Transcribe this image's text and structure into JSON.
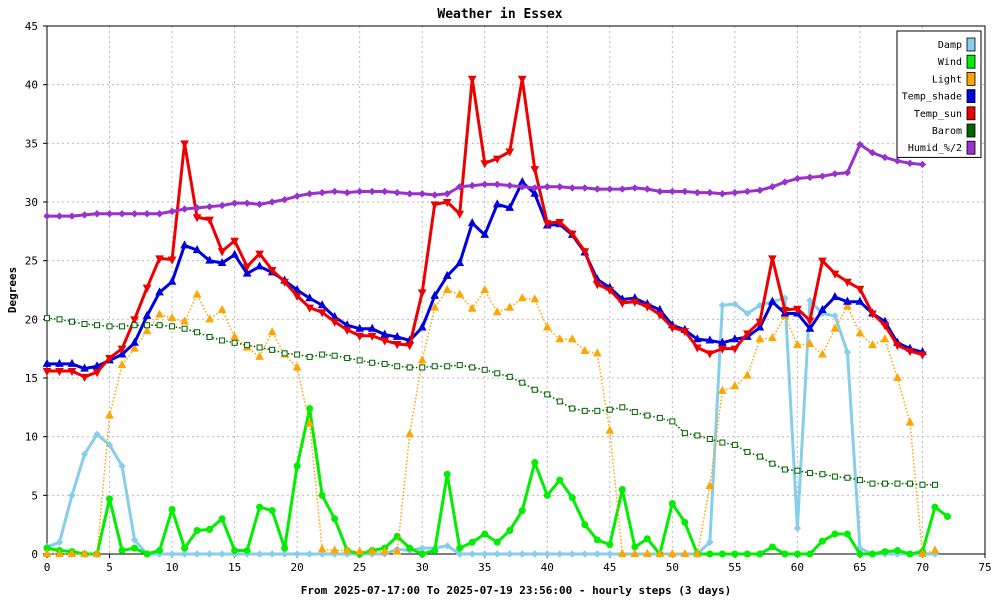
{
  "chart_data": {
    "type": "line",
    "title": "Weather in Essex",
    "xlabel": "From 2025-07-17:00 To 2025-07-19 23:56:00 - hourly steps (3 days)",
    "ylabel": "Degrees",
    "xlim": [
      0,
      75
    ],
    "ylim": [
      0,
      45
    ],
    "xticks": [
      0,
      5,
      10,
      15,
      20,
      25,
      30,
      35,
      40,
      45,
      50,
      55,
      60,
      65,
      70,
      75
    ],
    "yticks": [
      0,
      5,
      10,
      15,
      20,
      25,
      30,
      35,
      40,
      45
    ],
    "grid": true,
    "legend_position": "top-right",
    "series": [
      {
        "name": "Damp",
        "color": "#87ceeb",
        "style": "thick",
        "marker": "diamond",
        "values": [
          0.6,
          1,
          5,
          8.5,
          10.2,
          9.3,
          7.5,
          1.2,
          0,
          0,
          0,
          0,
          0,
          0,
          0,
          0,
          0,
          0,
          0,
          0,
          0,
          0,
          0,
          0,
          0,
          0,
          0,
          0,
          0.4,
          0.3,
          0.5,
          0.5,
          0.7,
          0,
          0,
          0,
          0,
          0,
          0,
          0,
          0,
          0,
          0,
          0,
          0,
          0,
          0,
          0,
          0,
          0,
          0,
          0,
          0,
          1,
          21.2,
          21.3,
          20.5,
          21.2,
          21.5,
          21.8,
          2.2,
          21.6,
          20.5,
          20.3,
          17.2,
          0.5,
          0,
          0,
          0,
          0,
          0,
          0
        ]
      },
      {
        "name": "Wind",
        "color": "#00ee00",
        "style": "thick",
        "marker": "circle",
        "values": [
          0.5,
          0.3,
          0.2,
          0,
          0,
          4.7,
          0.3,
          0.5,
          0,
          0.3,
          3.8,
          0.5,
          2,
          2.1,
          3,
          0.3,
          0.3,
          4,
          3.7,
          0.5,
          7.5,
          12.4,
          5,
          3,
          0.3,
          0,
          0.3,
          0.5,
          1.5,
          0.5,
          0,
          0.3,
          6.8,
          0.5,
          1,
          1.7,
          1,
          2,
          3.7,
          7.8,
          5,
          6.3,
          4.8,
          2.5,
          1.2,
          0.8,
          5.5,
          0.6,
          1.3,
          0,
          4.3,
          2.7,
          0,
          0,
          0,
          0,
          0,
          0,
          0.6,
          0,
          0,
          0,
          1.1,
          1.7,
          1.7,
          0,
          0,
          0.2,
          0.3,
          0,
          0.2,
          4,
          3.2
        ]
      },
      {
        "name": "Light",
        "color": "#ffa500",
        "style": "dotted",
        "marker": "triangle-up",
        "values": [
          0,
          0,
          0,
          0,
          0,
          11.8,
          16.1,
          17.5,
          19,
          20.4,
          20.1,
          19.8,
          22.1,
          20,
          20.8,
          18.5,
          17.6,
          16.8,
          18.9,
          17,
          15.9,
          11.1,
          0.4,
          0.3,
          0.3,
          0.2,
          0.2,
          0.2,
          0.2,
          10.2,
          16.5,
          21,
          22.5,
          22.1,
          20.9,
          22.5,
          20.6,
          21,
          21.8,
          21.7,
          19.3,
          18.3,
          18.3,
          17.3,
          17.1,
          10.5,
          0,
          0,
          0,
          0,
          0,
          0,
          0,
          5.8,
          13.9,
          14.3,
          15.2,
          18.3,
          18.4,
          20.3,
          17.8,
          17.9,
          17,
          19.2,
          21.1,
          18.8,
          17.8,
          18.3,
          15,
          11.2,
          0,
          0.3
        ]
      },
      {
        "name": "Temp_shade",
        "color": "#0000dd",
        "style": "thick",
        "marker": "triangle-up",
        "values": [
          16.2,
          16.2,
          16.2,
          15.8,
          16,
          16.5,
          17,
          18,
          20.3,
          22.3,
          23.2,
          26.3,
          25.9,
          25,
          24.8,
          25.5,
          23.9,
          24.5,
          24,
          23.3,
          22.5,
          21.8,
          21.2,
          20.2,
          19.5,
          19.2,
          19.2,
          18.7,
          18.5,
          18.2,
          19.3,
          22,
          23.7,
          24.8,
          28.2,
          27.2,
          29.8,
          29.5,
          31.7,
          30.7,
          28,
          28.1,
          27.2,
          25.7,
          23.4,
          22.7,
          21.7,
          21.8,
          21.3,
          20.8,
          19.5,
          19.1,
          18.3,
          18.2,
          18,
          18.3,
          18.5,
          19.3,
          21.5,
          20.5,
          20.5,
          19.2,
          20.8,
          21.9,
          21.5,
          21.5,
          20.5,
          19.8,
          18,
          17.5,
          17.2
        ]
      },
      {
        "name": "Temp_sun",
        "color": "#ee0000",
        "style": "thick",
        "marker": "triangle-down",
        "values": [
          15.6,
          15.6,
          15.6,
          15.1,
          15.5,
          16.7,
          17.5,
          20,
          22.7,
          25.2,
          25.1,
          35,
          28.7,
          28.5,
          25.8,
          26.7,
          24.5,
          25.6,
          24.2,
          23.2,
          22,
          21,
          20.6,
          19.8,
          19.1,
          18.6,
          18.6,
          18.2,
          17.9,
          17.8,
          22.3,
          29.8,
          30,
          29,
          40.5,
          33.3,
          33.7,
          34.3,
          40.5,
          32.8,
          28.2,
          28.3,
          27.3,
          25.8,
          23,
          22.5,
          21.4,
          21.5,
          21.1,
          20.4,
          19.3,
          19,
          17.6,
          17.1,
          17.5,
          17.5,
          18.8,
          19.8,
          25.2,
          20.8,
          20.9,
          19.9,
          25,
          23.9,
          23.2,
          22.6,
          20.5,
          19.5,
          17.8,
          17.3,
          17
        ]
      },
      {
        "name": "Barom",
        "color": "#006400",
        "style": "dotted",
        "marker": "square",
        "values": [
          20.1,
          20,
          19.8,
          19.6,
          19.5,
          19.4,
          19.4,
          19.5,
          19.5,
          19.5,
          19.4,
          19.2,
          18.9,
          18.5,
          18.2,
          18,
          17.8,
          17.6,
          17.4,
          17.1,
          17,
          16.8,
          17,
          16.9,
          16.7,
          16.5,
          16.3,
          16.2,
          16,
          15.9,
          15.9,
          16,
          16,
          16.1,
          15.9,
          15.7,
          15.4,
          15.1,
          14.6,
          14,
          13.6,
          13,
          12.4,
          12.2,
          12.2,
          12.3,
          12.5,
          12.1,
          11.8,
          11.6,
          11.3,
          10.3,
          10.1,
          9.8,
          9.5,
          9.3,
          8.7,
          8.3,
          7.7,
          7.2,
          7.1,
          6.9,
          6.8,
          6.6,
          6.5,
          6.3,
          6,
          6,
          6,
          6,
          5.9,
          5.9
        ]
      },
      {
        "name": "Humid_%/2",
        "color": "#9932cc",
        "style": "thick",
        "marker": "diamond",
        "values": [
          28.8,
          28.8,
          28.8,
          28.9,
          29,
          29,
          29,
          29,
          29,
          29,
          29.2,
          29.4,
          29.5,
          29.6,
          29.7,
          29.9,
          29.9,
          29.8,
          30,
          30.2,
          30.5,
          30.7,
          30.8,
          30.9,
          30.8,
          30.9,
          30.9,
          30.9,
          30.8,
          30.7,
          30.7,
          30.6,
          30.7,
          31.3,
          31.4,
          31.5,
          31.5,
          31.4,
          31.3,
          31.2,
          31.3,
          31.3,
          31.2,
          31.2,
          31.1,
          31.1,
          31.1,
          31.2,
          31.1,
          30.9,
          30.9,
          30.9,
          30.8,
          30.8,
          30.7,
          30.8,
          30.9,
          31,
          31.3,
          31.7,
          32,
          32.1,
          32.2,
          32.4,
          32.5,
          34.9,
          34.2,
          33.8,
          33.5,
          33.3,
          33.2
        ]
      }
    ]
  }
}
